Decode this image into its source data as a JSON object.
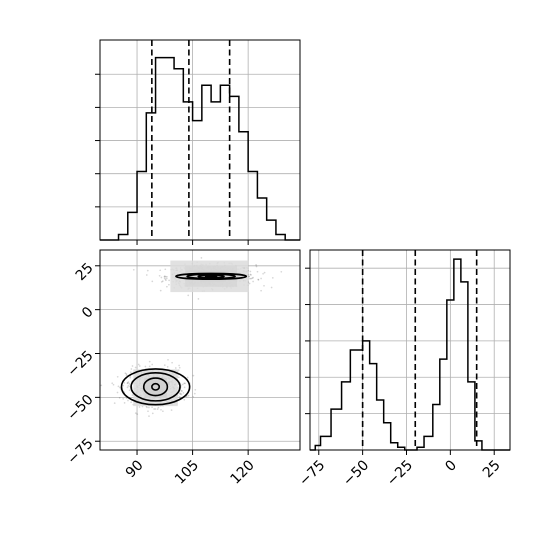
{
  "chart_data": {
    "type": "corner",
    "grid": true,
    "panels": [
      {
        "id": "hist-x",
        "type": "histogram",
        "xlim": [
          80,
          134
        ],
        "ylim": [
          0,
          181
        ],
        "bins": [
          [
            80,
            82.5,
            0
          ],
          [
            82.5,
            85,
            0
          ],
          [
            85,
            87.5,
            5
          ],
          [
            87.5,
            90,
            25
          ],
          [
            90,
            92.5,
            62
          ],
          [
            92.5,
            95,
            115
          ],
          [
            95,
            97.5,
            165
          ],
          [
            97.5,
            100,
            165
          ],
          [
            100,
            102.5,
            155
          ],
          [
            102.5,
            105,
            125
          ],
          [
            105,
            107.5,
            108
          ],
          [
            107.5,
            110,
            140
          ],
          [
            110,
            112.5,
            125
          ],
          [
            112.5,
            115,
            140
          ],
          [
            115,
            117.5,
            130
          ],
          [
            117.5,
            120,
            98
          ],
          [
            120,
            122.5,
            62
          ],
          [
            122.5,
            125,
            38
          ],
          [
            125,
            127.5,
            18
          ],
          [
            127.5,
            130,
            5
          ],
          [
            130,
            132.5,
            0
          ],
          [
            132.5,
            134,
            0
          ]
        ],
        "quantile_lines": [
          94,
          104,
          115
        ],
        "xticks": [
          90,
          105,
          120
        ],
        "yticks": [
          30,
          60,
          90,
          120,
          150
        ]
      },
      {
        "id": "hist-y",
        "type": "histogram",
        "xlim": [
          -80,
          34
        ],
        "ylim": [
          0,
          220
        ],
        "bins": [
          [
            -80,
            -77,
            0
          ],
          [
            -77,
            -74,
            5
          ],
          [
            -74,
            -68,
            15
          ],
          [
            -68,
            -62,
            45
          ],
          [
            -62,
            -57,
            75
          ],
          [
            -57,
            -53,
            110
          ],
          [
            -53,
            -50,
            110
          ],
          [
            -50,
            -46,
            120
          ],
          [
            -46,
            -42,
            95
          ],
          [
            -42,
            -38,
            55
          ],
          [
            -38,
            -34,
            30
          ],
          [
            -34,
            -30,
            8
          ],
          [
            -30,
            -26,
            3
          ],
          [
            -26,
            -19,
            0
          ],
          [
            -19,
            -15,
            3
          ],
          [
            -15,
            -10,
            15
          ],
          [
            -10,
            -6,
            50
          ],
          [
            -6,
            -2,
            100
          ],
          [
            -2,
            2,
            165
          ],
          [
            2,
            6,
            210
          ],
          [
            6,
            10,
            185
          ],
          [
            10,
            14,
            75
          ],
          [
            14,
            18,
            10
          ],
          [
            18,
            26,
            0
          ],
          [
            26,
            34,
            0
          ]
        ],
        "quantile_lines": [
          -50,
          -20,
          15
        ],
        "xticks": [
          -75,
          -50,
          -25,
          0,
          25
        ],
        "xtick_labels": [
          "−75",
          "−50",
          "−25",
          "0",
          "25"
        ],
        "yticks": [
          40,
          80,
          120,
          160,
          200
        ]
      },
      {
        "id": "joint",
        "type": "2d-density",
        "xlim": [
          80,
          134
        ],
        "ylim": [
          -80,
          34
        ],
        "xticks": [
          90,
          105,
          120
        ],
        "xtick_labels": [
          "90",
          "105",
          "120"
        ],
        "yticks": [
          -75,
          -50,
          -25,
          0,
          25
        ],
        "ytick_labels": [
          "−75",
          "−50",
          "−25",
          "0",
          "25"
        ],
        "clusters": [
          {
            "center": [
              110,
              19
            ],
            "spread": [
              6.0,
              3.2
            ],
            "contours": [
              [
                1.5,
                0.42
              ],
              [
                3.5,
                0.78
              ],
              [
                6.5,
                1.25
              ],
              [
                9.5,
                1.62
              ]
            ]
          },
          {
            "center": [
              95,
              -44
            ],
            "spread": [
              3.9,
              5.3
            ],
            "contours": [
              [
                1.0,
                1.8
              ],
              [
                3.2,
                5.0
              ],
              [
                6.6,
                8.0
              ],
              [
                9.2,
                10.2
              ]
            ]
          }
        ],
        "density_cells": [
          {
            "x": [
              107,
              114
            ],
            "y": [
              16,
              22
            ],
            "level": 4
          },
          {
            "x": [
              103,
              117
            ],
            "y": [
              13,
              25
            ],
            "level": 2
          },
          {
            "x": [
              99,
              120
            ],
            "y": [
              10,
              28
            ],
            "level": 1
          },
          {
            "x": [
              92,
              98
            ],
            "y": [
              -50,
              -39
            ],
            "level": 3
          },
          {
            "x": [
              89,
              101
            ],
            "y": [
              -55,
              -34
            ],
            "level": 1
          }
        ]
      }
    ]
  }
}
